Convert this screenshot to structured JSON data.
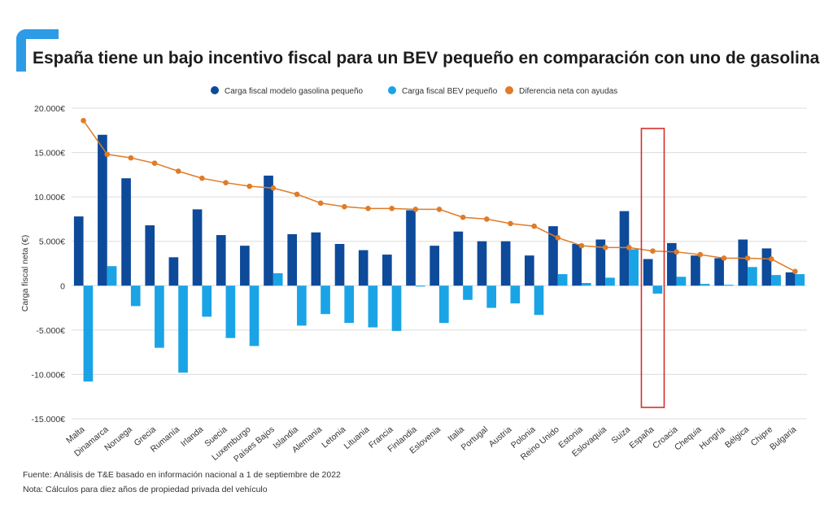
{
  "title": "España  tiene un bajo incentivo fiscal para un BEV pequeño en comparación con uno de gasolina",
  "footer": {
    "source": "Fuente: Análisis de T&E basado en información nacional a 1 de septiembre de 2022",
    "note": "Nota: Cálculos para diez años de propiedad privada del vehículo"
  },
  "colors": {
    "petrol": "#0d4a9a",
    "bev": "#1aa4e6",
    "diff": "#e07b26",
    "highlight": "#d62e2e",
    "accent": "#2e9be6"
  },
  "chart_data": {
    "type": "bar",
    "ylabel": "Carga fiscal neta (€)",
    "ylim": [
      -15000,
      20000
    ],
    "yticks": [
      20000,
      15000,
      10000,
      5000,
      0,
      -5000,
      -10000,
      -15000
    ],
    "ytick_labels": [
      "20.000€",
      "15.000€",
      "10.000€",
      "5.000€",
      "0",
      "-5.000€",
      "-10.000€",
      "-15.000€"
    ],
    "grid": true,
    "highlight_category": "España",
    "categories": [
      "Malta",
      "Dinamarca",
      "Noruega",
      "Grecia",
      "Rumanía",
      "Irlanda",
      "Suecia",
      "Luxemburgo",
      "Países Bajos",
      "Islandia",
      "Alemania",
      "Letonia",
      "Lituania",
      "Francia",
      "Finlandia",
      "Eslovenia",
      "Italia",
      "Portugal",
      "Austria",
      "Polonia",
      "Reino Unido",
      "Estonia",
      "Eslovaquia",
      "Suiza",
      "España",
      "Croacia",
      "Chequia",
      "Hungría",
      "Bélgica",
      "Chipre",
      "Bulgaria"
    ],
    "series": [
      {
        "name": "Carga fiscal modelo gasolina pequeño",
        "kind": "bar",
        "values": [
          7800,
          17000,
          12100,
          6800,
          3200,
          8600,
          5700,
          4500,
          12400,
          5800,
          6000,
          4700,
          4000,
          3500,
          8500,
          4500,
          6100,
          5000,
          5000,
          3400,
          6700,
          4700,
          5200,
          8400,
          3000,
          4800,
          3400,
          3100,
          5200,
          4200,
          1500
        ]
      },
      {
        "name": "Carga fiscal BEV pequeño",
        "kind": "bar",
        "values": [
          -10800,
          2200,
          -2300,
          -7000,
          -9800,
          -3500,
          -5900,
          -6800,
          1400,
          -4500,
          -3200,
          -4200,
          -4700,
          -5100,
          -100,
          -4200,
          -1600,
          -2500,
          -2000,
          -3300,
          1300,
          300,
          900,
          4100,
          -900,
          1000,
          200,
          100,
          2100,
          1200,
          1300
        ]
      },
      {
        "name": "Diferencia neta con ayudas",
        "kind": "line",
        "values": [
          18600,
          14800,
          14400,
          13800,
          12900,
          12100,
          11600,
          11200,
          11000,
          10300,
          9300,
          8900,
          8700,
          8700,
          8600,
          8600,
          7700,
          7500,
          7000,
          6700,
          5400,
          4500,
          4300,
          4300,
          3900,
          3800,
          3500,
          3100,
          3100,
          3000,
          1600
        ]
      }
    ]
  }
}
